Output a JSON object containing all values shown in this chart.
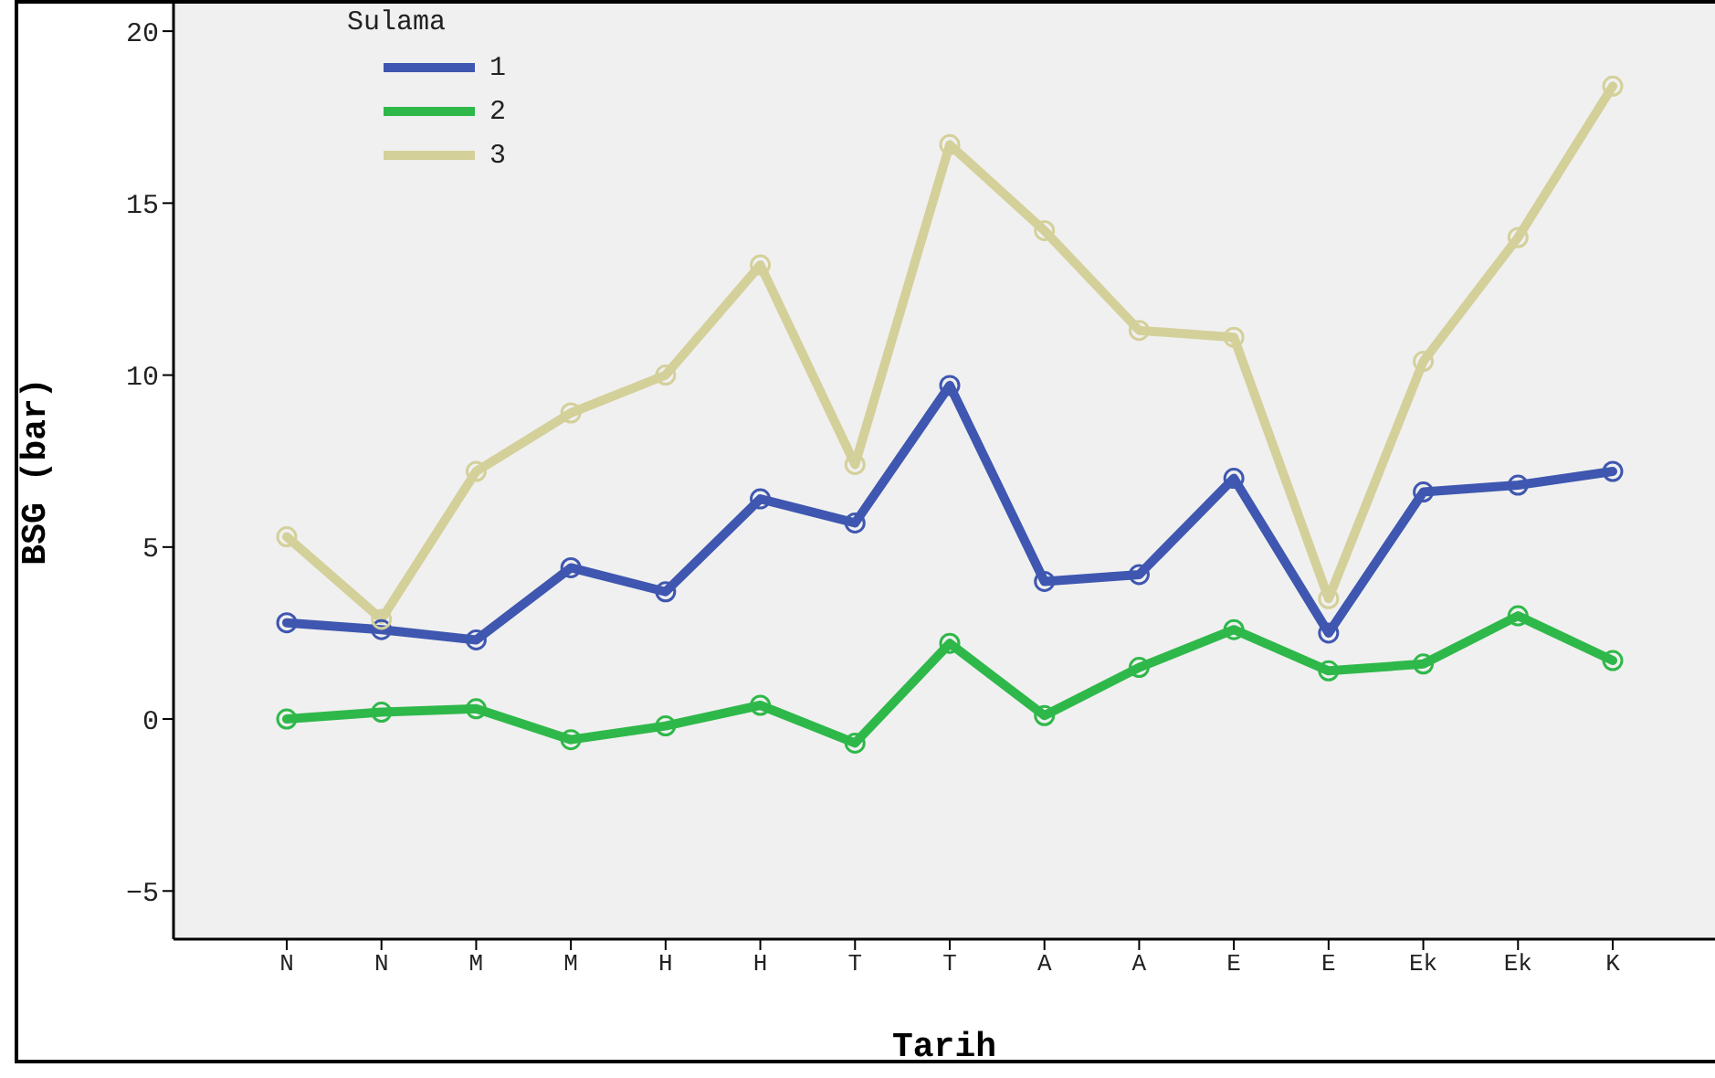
{
  "chart_data": {
    "type": "line",
    "xlabel": "Tarih",
    "ylabel": "BSG (bar)",
    "legend_title": "Sulama",
    "legend": "top left",
    "marker": "circle",
    "line_style": "solid",
    "grid": false,
    "categories": [
      "N",
      "N",
      "M",
      "M",
      "H",
      "H",
      "T",
      "T",
      "A",
      "A",
      "E",
      "E",
      "Ek",
      "Ek",
      "K"
    ],
    "ylim": [
      -6.4,
      20.8
    ],
    "yticks": [
      {
        "value": -5,
        "label": "−5"
      },
      0,
      5,
      10,
      15,
      20
    ],
    "series": [
      {
        "name": "1",
        "color": "#3f57b0",
        "values": [
          2.8,
          2.6,
          2.3,
          4.4,
          3.7,
          6.4,
          5.7,
          9.7,
          4.0,
          4.2,
          7.0,
          2.5,
          6.6,
          6.8,
          7.2
        ]
      },
      {
        "name": "2",
        "color": "#2fb84a",
        "values": [
          0,
          0.2,
          0.3,
          -0.6,
          -0.2,
          0.4,
          -0.7,
          2.2,
          0.1,
          1.5,
          2.6,
          1.4,
          1.6,
          3.0,
          1.7
        ]
      },
      {
        "name": "3",
        "color": "#d4d09a",
        "values": [
          5.3,
          2.9,
          7.2,
          8.9,
          10.0,
          13.2,
          7.4,
          16.7,
          14.2,
          11.3,
          11.1,
          3.5,
          10.4,
          14.0,
          18.4
        ]
      }
    ]
  }
}
